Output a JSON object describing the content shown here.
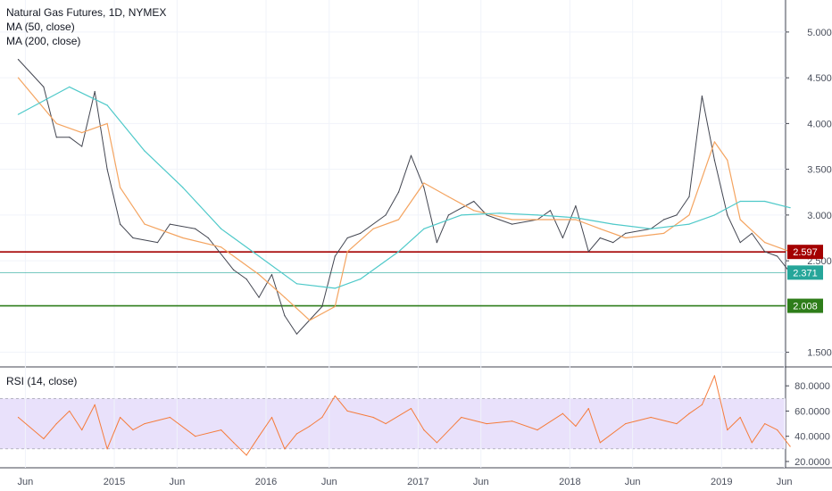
{
  "legend": {
    "title": "Natural Gas Futures, 1D, NYMEX",
    "ma50": "MA (50, close)",
    "ma200": "MA (200, close)",
    "rsi": "RSI (14, close)"
  },
  "colors": {
    "price": "#434651",
    "ma50": "#f4a460",
    "ma200": "#4ec9c9",
    "rsi": "#f57c3c",
    "rsi_band": "#e9e1fb",
    "resistance": "#a40000",
    "support": "#2e7d1a",
    "last_price": "#26a69a"
  },
  "chart_data": [
    {
      "type": "line",
      "series": [
        {
          "name": "Natural Gas Futures",
          "x": [
            "2014-05",
            "2014-07",
            "2014-08",
            "2014-09",
            "2014-10",
            "2014-11",
            "2014-12",
            "2015-01",
            "2015-02",
            "2015-04",
            "2015-05",
            "2015-07",
            "2015-08",
            "2015-10",
            "2015-11",
            "2015-12",
            "2016-01",
            "2016-02",
            "2016-03",
            "2016-05",
            "2016-06",
            "2016-07",
            "2016-08",
            "2016-10",
            "2016-11",
            "2016-12",
            "2017-01",
            "2017-02",
            "2017-03",
            "2017-05",
            "2017-06",
            "2017-07",
            "2017-08",
            "2017-10",
            "2017-11",
            "2017-12",
            "2018-01",
            "2018-02",
            "2018-03",
            "2018-04",
            "2018-05",
            "2018-07",
            "2018-08",
            "2018-09",
            "2018-10",
            "2018-11",
            "2018-12",
            "2019-01",
            "2019-02",
            "2019-03",
            "2019-04",
            "2019-05",
            "2019-06"
          ],
          "values": [
            4.7,
            4.4,
            3.85,
            3.85,
            3.75,
            4.35,
            3.5,
            2.9,
            2.75,
            2.7,
            2.9,
            2.85,
            2.75,
            2.4,
            2.3,
            2.1,
            2.35,
            1.9,
            1.7,
            2.0,
            2.55,
            2.75,
            2.8,
            3.0,
            3.25,
            3.65,
            3.3,
            2.7,
            3.0,
            3.15,
            3.0,
            2.95,
            2.9,
            2.95,
            3.05,
            2.75,
            3.1,
            2.6,
            2.75,
            2.7,
            2.8,
            2.85,
            2.95,
            3.0,
            3.2,
            4.3,
            3.6,
            3.0,
            2.7,
            2.8,
            2.6,
            2.55,
            2.371
          ]
        },
        {
          "name": "MA (50, close)",
          "x": [
            "2014-05",
            "2014-08",
            "2014-10",
            "2014-12",
            "2015-01",
            "2015-03",
            "2015-06",
            "2015-09",
            "2015-12",
            "2016-02",
            "2016-04",
            "2016-06",
            "2016-07",
            "2016-09",
            "2016-11",
            "2017-01",
            "2017-03",
            "2017-05",
            "2017-08",
            "2017-11",
            "2018-01",
            "2018-03",
            "2018-05",
            "2018-08",
            "2018-10",
            "2018-12",
            "2019-01",
            "2019-02",
            "2019-04",
            "2019-06"
          ],
          "values": [
            4.5,
            4.0,
            3.9,
            4.0,
            3.3,
            2.9,
            2.75,
            2.65,
            2.35,
            2.1,
            1.85,
            2.0,
            2.6,
            2.85,
            2.95,
            3.35,
            3.2,
            3.05,
            2.95,
            2.95,
            2.95,
            2.85,
            2.75,
            2.8,
            3.0,
            3.8,
            3.6,
            2.95,
            2.7,
            2.6
          ]
        },
        {
          "name": "MA (200, close)",
          "x": [
            "2014-05",
            "2014-09",
            "2014-12",
            "2015-03",
            "2015-06",
            "2015-09",
            "2015-12",
            "2016-03",
            "2016-06",
            "2016-08",
            "2016-11",
            "2017-01",
            "2017-04",
            "2017-07",
            "2017-10",
            "2018-01",
            "2018-04",
            "2018-07",
            "2018-10",
            "2018-12",
            "2019-02",
            "2019-04",
            "2019-06"
          ],
          "values": [
            4.1,
            4.4,
            4.2,
            3.7,
            3.3,
            2.85,
            2.55,
            2.25,
            2.2,
            2.3,
            2.6,
            2.85,
            3.0,
            3.02,
            3.0,
            2.97,
            2.9,
            2.85,
            2.9,
            3.0,
            3.15,
            3.15,
            3.08
          ]
        }
      ],
      "y_ticks": [
        "5.000",
        "4.500",
        "4.000",
        "3.500",
        "3.000",
        "2.500",
        "1.500"
      ],
      "ylim": [
        1.35,
        5.35
      ],
      "x_ticks": [
        "Jun",
        "2015",
        "Jun",
        "2016",
        "Jun",
        "2017",
        "Jun",
        "2018",
        "Jun",
        "2019",
        "Jun"
      ],
      "annotations": [
        {
          "label": "2.597",
          "value": 2.597,
          "role": "resistance"
        },
        {
          "label": "2.371",
          "value": 2.371,
          "role": "last_price"
        },
        {
          "label": "2.008",
          "value": 2.008,
          "role": "support"
        }
      ]
    },
    {
      "type": "line",
      "series": [
        {
          "name": "RSI (14, close)",
          "x": [
            "2014-05",
            "2014-07",
            "2014-08",
            "2014-09",
            "2014-10",
            "2014-11",
            "2014-12",
            "2015-01",
            "2015-02",
            "2015-03",
            "2015-05",
            "2015-07",
            "2015-09",
            "2015-10",
            "2015-11",
            "2015-12",
            "2016-01",
            "2016-02",
            "2016-03",
            "2016-04",
            "2016-05",
            "2016-06",
            "2016-07",
            "2016-09",
            "2016-10",
            "2016-12",
            "2017-01",
            "2017-02",
            "2017-04",
            "2017-06",
            "2017-08",
            "2017-10",
            "2017-12",
            "2018-01",
            "2018-02",
            "2018-03",
            "2018-05",
            "2018-07",
            "2018-09",
            "2018-10",
            "2018-11",
            "2018-12",
            "2019-01",
            "2019-02",
            "2019-03",
            "2019-04",
            "2019-05",
            "2019-06"
          ],
          "values": [
            55,
            38,
            50,
            60,
            45,
            65,
            30,
            55,
            45,
            50,
            55,
            40,
            45,
            35,
            25,
            40,
            55,
            30,
            42,
            48,
            55,
            72,
            60,
            55,
            50,
            62,
            45,
            35,
            55,
            50,
            52,
            45,
            58,
            48,
            62,
            35,
            50,
            55,
            50,
            58,
            65,
            88,
            45,
            55,
            35,
            50,
            45,
            32
          ]
        }
      ],
      "y_ticks": [
        "80.0000",
        "60.0000",
        "40.0000",
        "20.0000"
      ],
      "ylim": [
        15,
        95
      ],
      "bands": [
        70,
        30
      ],
      "x_ticks": [
        "Jun",
        "2015",
        "Jun",
        "2016",
        "Jun",
        "2017",
        "Jun",
        "2018",
        "Jun",
        "2019",
        "Jun"
      ]
    }
  ]
}
